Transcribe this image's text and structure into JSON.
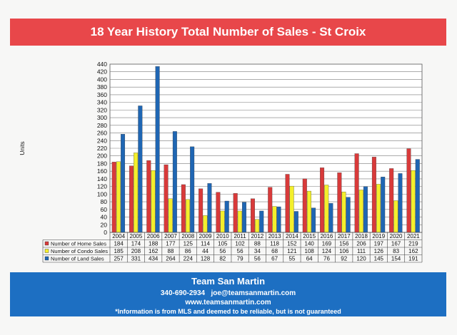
{
  "title": "18 Year History Total Number of Sales - St Croix",
  "footer": {
    "name": "Team San Martin",
    "phone": "340-690-2934",
    "email": "joe@teamsanmartin.com",
    "website": "www.teamsanmartin.com",
    "disclaimer": "*Information is from MLS and deemed to be reliable, but is not guaranteed"
  },
  "colors": {
    "title_band": "#e8474a",
    "footer_band": "#1d6fc2",
    "home": "#d83a3a",
    "condo": "#f4ef2c",
    "land": "#1f66b3"
  },
  "chart_data": {
    "type": "bar",
    "title": "",
    "ylabel": "Units",
    "xlabel": "",
    "ylim": [
      0,
      440
    ],
    "yticks": [
      0,
      20,
      40,
      60,
      80,
      100,
      120,
      140,
      160,
      180,
      200,
      220,
      240,
      260,
      280,
      300,
      320,
      340,
      360,
      380,
      400,
      420,
      440
    ],
    "grid": true,
    "legend": "data-table",
    "categories": [
      "2004",
      "2005",
      "2006",
      "2007",
      "2008",
      "2009",
      "2010",
      "2011",
      "2012",
      "2013",
      "2014",
      "2015",
      "2016",
      "2017",
      "2018",
      "2019",
      "2020",
      "2021"
    ],
    "series": [
      {
        "name": "Number of Home Sales",
        "color": "#d83a3a",
        "values": [
          184,
          174,
          188,
          177,
          125,
          114,
          105,
          102,
          88,
          118,
          152,
          140,
          169,
          156,
          206,
          197,
          167,
          219
        ]
      },
      {
        "name": "Number of Condo Sales",
        "color": "#f4ef2c",
        "values": [
          185,
          208,
          162,
          88,
          86,
          44,
          56,
          56,
          34,
          68,
          121,
          108,
          124,
          106,
          111,
          126,
          83,
          162
        ]
      },
      {
        "name": "Number of Land Sales",
        "color": "#1f66b3",
        "values": [
          257,
          331,
          434,
          264,
          224,
          128,
          82,
          79,
          56,
          67,
          55,
          64,
          76,
          92,
          120,
          145,
          154,
          191
        ]
      }
    ]
  }
}
